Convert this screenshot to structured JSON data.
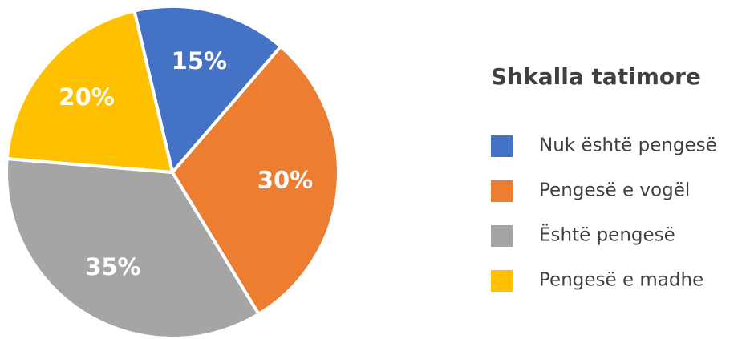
{
  "chart_data": {
    "type": "pie",
    "title": "Shkalla tatimore",
    "categories": [
      "Nuk është pengesë",
      "Pengesë e vogël",
      "Është pengesë",
      "Pengesë e madhe"
    ],
    "values": [
      15,
      30,
      35,
      20
    ],
    "value_labels": [
      "15%",
      "30%",
      "35%",
      "20%"
    ],
    "colors": [
      "#4472c4",
      "#ed7d31",
      "#a5a5a5",
      "#ffc000"
    ],
    "legend": "right"
  }
}
